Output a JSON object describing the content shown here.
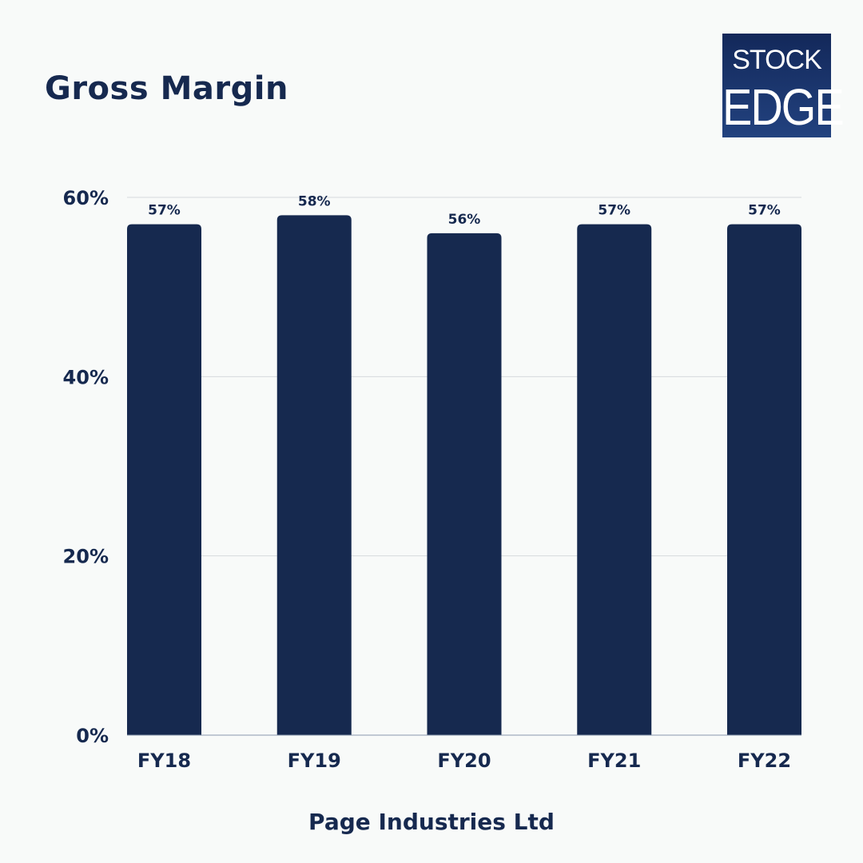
{
  "logo": {
    "line1": "STOCK",
    "line2": "EDGE"
  },
  "chart_data": {
    "type": "bar",
    "title": "Gross Margin",
    "xlabel": "Page Industries Ltd",
    "ylabel": "",
    "categories": [
      "FY18",
      "FY19",
      "FY20",
      "FY21",
      "FY22"
    ],
    "values": [
      57,
      58,
      56,
      57,
      57
    ],
    "data_labels": [
      "57%",
      "58%",
      "56%",
      "57%",
      "57%"
    ],
    "ylim": [
      0,
      60
    ],
    "yticks": [
      0,
      20,
      40,
      60
    ],
    "ytick_labels": [
      "0%",
      "20%",
      "40%",
      "60%"
    ],
    "grid": true,
    "bar_color": "#16294f"
  }
}
